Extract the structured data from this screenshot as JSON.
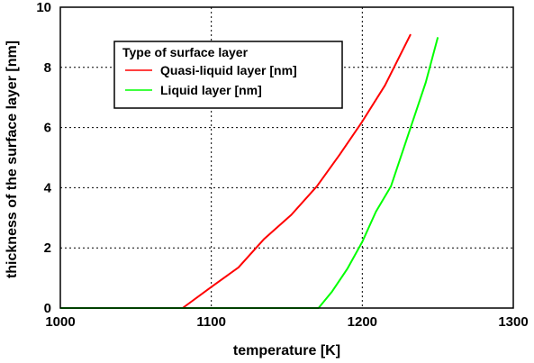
{
  "chart_data": {
    "type": "line",
    "title": "",
    "xlabel": "temperature [K]",
    "ylabel": "thickness of the surface layer [nm]",
    "xlim": [
      1000,
      1300
    ],
    "ylim": [
      0,
      10
    ],
    "xticks": [
      1000,
      1100,
      1200,
      1300
    ],
    "yticks": [
      0,
      2,
      4,
      6,
      8,
      10
    ],
    "grid": true,
    "legend": {
      "title": "Type of surface layer",
      "position": "top-left"
    },
    "series": [
      {
        "name": "Quasi-liquid layer [nm]",
        "color": "#ff0000",
        "points": [
          [
            1000,
            0
          ],
          [
            1081,
            0
          ],
          [
            1100,
            0.7
          ],
          [
            1118,
            1.35
          ],
          [
            1135,
            2.3
          ],
          [
            1153,
            3.1
          ],
          [
            1170,
            4.05
          ],
          [
            1185,
            5.1
          ],
          [
            1200,
            6.2
          ],
          [
            1215,
            7.4
          ],
          [
            1232,
            9.1
          ]
        ]
      },
      {
        "name": "Liquid layer [nm]",
        "color": "#00ff00",
        "points": [
          [
            1000,
            0
          ],
          [
            1171,
            0
          ],
          [
            1180,
            0.55
          ],
          [
            1190,
            1.3
          ],
          [
            1200,
            2.2
          ],
          [
            1209,
            3.2
          ],
          [
            1219,
            4.05
          ],
          [
            1232,
            6.0
          ],
          [
            1242,
            7.5
          ],
          [
            1250,
            9.0
          ]
        ]
      }
    ]
  }
}
